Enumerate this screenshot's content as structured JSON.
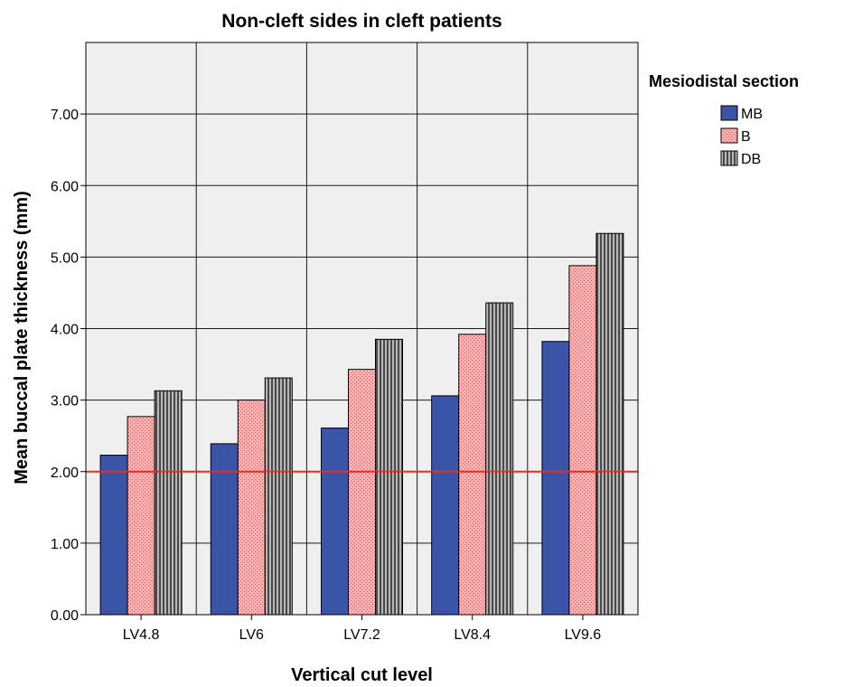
{
  "chart_data": {
    "type": "bar",
    "title": "Non-cleft sides in cleft patients",
    "xlabel": "Vertical cut level",
    "ylabel": "Mean buccal plate thickness (mm)",
    "categories": [
      "LV4.8",
      "LV6",
      "LV7.2",
      "LV8.4",
      "LV9.6"
    ],
    "series": [
      {
        "name": "MB",
        "values": [
          2.23,
          2.39,
          2.61,
          3.06,
          3.82
        ]
      },
      {
        "name": "B",
        "values": [
          2.77,
          3.0,
          3.43,
          3.92,
          4.88
        ]
      },
      {
        "name": "DB",
        "values": [
          3.13,
          3.31,
          3.85,
          4.36,
          5.33
        ]
      }
    ],
    "ylim": [
      0,
      8
    ],
    "yticks": [
      "0.00",
      "1.00",
      "2.00",
      "3.00",
      "4.00",
      "5.00",
      "6.00",
      "7.00"
    ],
    "reference_line": {
      "y": 2.0,
      "color": "#e0302a"
    },
    "grid": true,
    "legend": {
      "title": "Mesiodistal section",
      "position": "right"
    },
    "colors": {
      "MB": "#3a55a8",
      "B": "#f2a0a0",
      "DB": "#9a9a9a",
      "plot_background": "#efefef"
    }
  }
}
